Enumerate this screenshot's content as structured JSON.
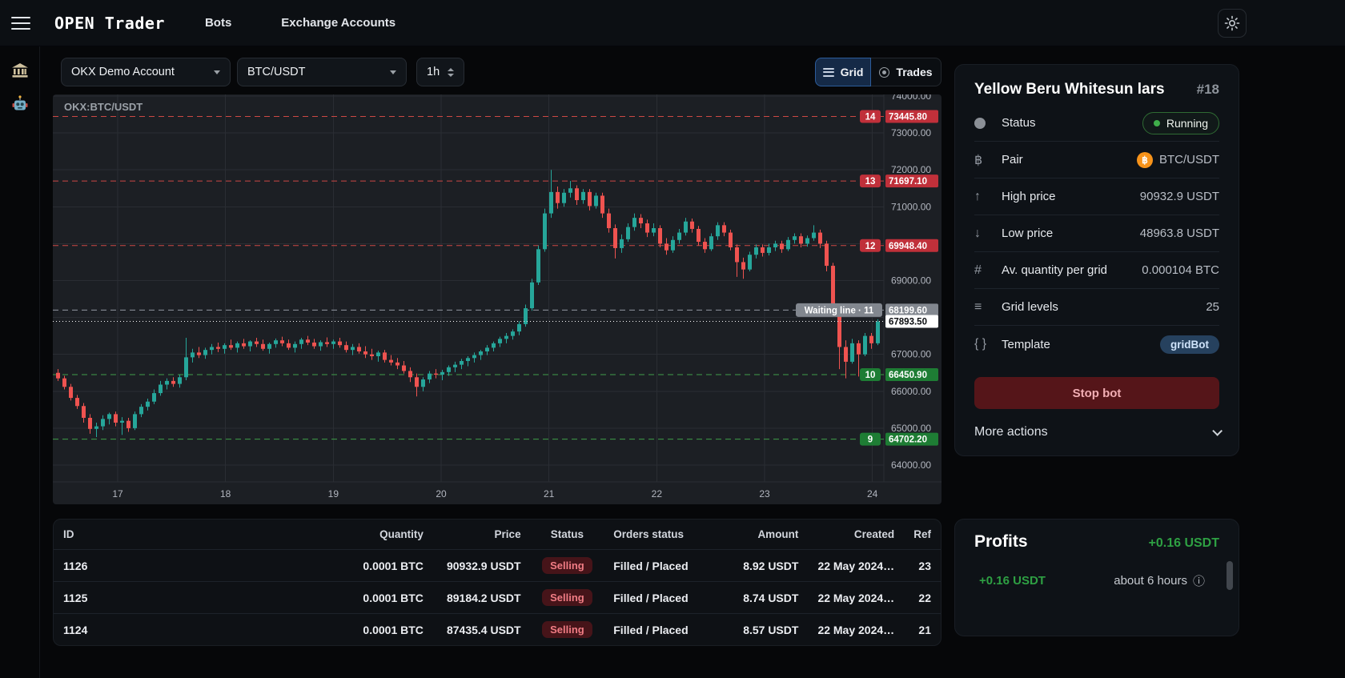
{
  "navbar": {
    "logo": "OPEN Trader",
    "items": [
      {
        "label": "Bots"
      },
      {
        "label": "Exchange Accounts"
      }
    ]
  },
  "controls": {
    "account_select": "OKX Demo Account",
    "pair_select": "BTC/USDT",
    "interval": "1h",
    "view_grid": "Grid",
    "view_trades": "Trades"
  },
  "icons": {
    "arrow_up": "↑",
    "arrow_down": "↓",
    "hash": "#",
    "list": "≡",
    "braces": "{ }",
    "bitcoin": "฿",
    "info": "ⓘ"
  },
  "chart_data": {
    "type": "candlestick",
    "symbol": "OKX:BTC/USDT",
    "interval": "1h",
    "ylim": [
      63800,
      74050
    ],
    "grid": true,
    "colors": {
      "up": "#26a69a",
      "down": "#ef5350",
      "sell_badge": "#c0303a",
      "sell_line": "#cc4844",
      "buy_badge": "#1e7d34",
      "buy_line": "#3f9e4a",
      "waiting_badge": "#82878f",
      "waiting_line": "#9096a0",
      "current": "#ffffff",
      "grid_line": "#2a2d33"
    },
    "y_ticks": [
      {
        "value": 74000,
        "label": "74000.00"
      },
      {
        "value": 73000,
        "label": "73000.00"
      },
      {
        "value": 72000,
        "label": "72000.00"
      },
      {
        "value": 71000,
        "label": "71000.00"
      },
      {
        "value": 70000,
        "label": ""
      },
      {
        "value": 69000,
        "label": "69000.00"
      },
      {
        "value": 68000,
        "label": ""
      },
      {
        "value": 67000,
        "label": "67000.00"
      },
      {
        "value": 66000,
        "label": "66000.00"
      },
      {
        "value": 65000,
        "label": "65000.00"
      },
      {
        "value": 64000,
        "label": "64000.00"
      }
    ],
    "x_ticks": [
      "17",
      "18",
      "19",
      "20",
      "21",
      "22",
      "23",
      "24"
    ],
    "grid_levels": [
      {
        "index": "14",
        "price": 73445.8,
        "label": "73445.80",
        "side": "sell"
      },
      {
        "index": "13",
        "price": 71697.1,
        "label": "71697.10",
        "side": "sell"
      },
      {
        "index": "12",
        "price": 69948.4,
        "label": "69948.40",
        "side": "sell"
      },
      {
        "index": "11",
        "price": 68199.6,
        "label": "68199.60",
        "side": "waiting",
        "line_label": "Waiting line · 11"
      },
      {
        "index": "10",
        "price": 66450.9,
        "label": "66450.90",
        "side": "buy"
      },
      {
        "index": "9",
        "price": 64702.2,
        "label": "64702.20",
        "side": "buy"
      }
    ],
    "current_price": {
      "value": 67893.5,
      "label": "67893.50"
    },
    "candles": [
      [
        66500,
        66600,
        66280,
        66350
      ],
      [
        66350,
        66420,
        66050,
        66120
      ],
      [
        66120,
        66200,
        65750,
        65820
      ],
      [
        65820,
        65900,
        65520,
        65600
      ],
      [
        65600,
        65680,
        65150,
        65280
      ],
      [
        65280,
        65380,
        64850,
        64980
      ],
      [
        64980,
        65150,
        64760,
        65050
      ],
      [
        65050,
        65350,
        64950,
        65250
      ],
      [
        65250,
        65420,
        65100,
        65380
      ],
      [
        65380,
        65450,
        65050,
        65150
      ],
      [
        65150,
        65300,
        64820,
        65200
      ],
      [
        65200,
        65280,
        64900,
        65000
      ],
      [
        65000,
        65450,
        64950,
        65380
      ],
      [
        65380,
        65650,
        65300,
        65580
      ],
      [
        65580,
        65800,
        65480,
        65720
      ],
      [
        65720,
        66050,
        65650,
        65950
      ],
      [
        65950,
        66280,
        65880,
        66180
      ],
      [
        66180,
        66350,
        66050,
        66280
      ],
      [
        66280,
        66380,
        66120,
        66200
      ],
      [
        66200,
        66450,
        66100,
        66380
      ],
      [
        66380,
        67450,
        66300,
        66920
      ],
      [
        66920,
        67150,
        66780,
        67050
      ],
      [
        67050,
        67200,
        66900,
        66980
      ],
      [
        66980,
        67180,
        66880,
        67120
      ],
      [
        67120,
        67280,
        67000,
        67200
      ],
      [
        67200,
        67320,
        67060,
        67150
      ],
      [
        67150,
        67300,
        67020,
        67250
      ],
      [
        67250,
        67400,
        67120,
        67180
      ],
      [
        67180,
        67350,
        67050,
        67300
      ],
      [
        67300,
        67420,
        67150,
        67220
      ],
      [
        67220,
        67380,
        67080,
        67350
      ],
      [
        67350,
        67450,
        67200,
        67280
      ],
      [
        67280,
        67400,
        67100,
        67150
      ],
      [
        67150,
        67320,
        67020,
        67280
      ],
      [
        67280,
        67430,
        67180,
        67380
      ],
      [
        67380,
        67480,
        67220,
        67300
      ],
      [
        67300,
        67400,
        67120,
        67180
      ],
      [
        67180,
        67350,
        67050,
        67280
      ],
      [
        67280,
        67450,
        67150,
        67400
      ],
      [
        67400,
        67500,
        67250,
        67320
      ],
      [
        67320,
        67420,
        67150,
        67220
      ],
      [
        67220,
        67380,
        67100,
        67330
      ],
      [
        67330,
        67460,
        67200,
        67280
      ],
      [
        67280,
        67400,
        67150,
        67350
      ],
      [
        67350,
        67450,
        67180,
        67250
      ],
      [
        67250,
        67350,
        67050,
        67120
      ],
      [
        67120,
        67280,
        66980,
        67200
      ],
      [
        67200,
        67300,
        67020,
        67080
      ],
      [
        67080,
        67220,
        66900,
        67000
      ],
      [
        67000,
        67150,
        66850,
        66950
      ],
      [
        66950,
        67100,
        66800,
        67050
      ],
      [
        67050,
        67120,
        66780,
        66850
      ],
      [
        66850,
        66980,
        66700,
        66780
      ],
      [
        66780,
        66900,
        66600,
        66700
      ],
      [
        66700,
        66820,
        66480,
        66550
      ],
      [
        66550,
        66650,
        66250,
        66380
      ],
      [
        66380,
        66480,
        65860,
        66120
      ],
      [
        66120,
        66380,
        66000,
        66320
      ],
      [
        66320,
        66550,
        66220,
        66480
      ],
      [
        66480,
        66600,
        66350,
        66450
      ],
      [
        66450,
        66580,
        66300,
        66520
      ],
      [
        66520,
        66700,
        66420,
        66650
      ],
      [
        66650,
        66800,
        66520,
        66720
      ],
      [
        66720,
        66880,
        66600,
        66820
      ],
      [
        66820,
        66950,
        66680,
        66900
      ],
      [
        66900,
        67050,
        66780,
        66980
      ],
      [
        66980,
        67120,
        66850,
        67080
      ],
      [
        67080,
        67250,
        66980,
        67180
      ],
      [
        67180,
        67350,
        67080,
        67300
      ],
      [
        67300,
        67480,
        67200,
        67420
      ],
      [
        67420,
        67580,
        67300,
        67500
      ],
      [
        67500,
        67680,
        67400,
        67620
      ],
      [
        67620,
        67900,
        67520,
        67820
      ],
      [
        67820,
        68350,
        67750,
        68250
      ],
      [
        68250,
        69050,
        68180,
        68950
      ],
      [
        68950,
        69950,
        68880,
        69850
      ],
      [
        69850,
        70950,
        69780,
        70820
      ],
      [
        70820,
        72000,
        70700,
        71400
      ],
      [
        71400,
        71550,
        70950,
        71100
      ],
      [
        71100,
        71480,
        71000,
        71380
      ],
      [
        71380,
        71700,
        71250,
        71500
      ],
      [
        71500,
        71580,
        71050,
        71180
      ],
      [
        71180,
        71480,
        71080,
        71400
      ],
      [
        71400,
        71480,
        70900,
        71020
      ],
      [
        71020,
        71380,
        70950,
        71300
      ],
      [
        71300,
        71380,
        70700,
        70820
      ],
      [
        70820,
        70950,
        70300,
        70420
      ],
      [
        70420,
        70520,
        69600,
        69880
      ],
      [
        69880,
        70250,
        69750,
        70120
      ],
      [
        70120,
        70550,
        70050,
        70450
      ],
      [
        70450,
        70820,
        70350,
        70700
      ],
      [
        70700,
        70800,
        70420,
        70550
      ],
      [
        70550,
        70650,
        70180,
        70300
      ],
      [
        70300,
        70550,
        70200,
        70420
      ],
      [
        70420,
        70500,
        69900,
        70000
      ],
      [
        70000,
        70150,
        69700,
        69820
      ],
      [
        69820,
        70200,
        69750,
        70100
      ],
      [
        70100,
        70400,
        70000,
        70300
      ],
      [
        70300,
        70700,
        70220,
        70600
      ],
      [
        70600,
        70680,
        70300,
        70400
      ],
      [
        70400,
        70480,
        69950,
        70050
      ],
      [
        70050,
        70150,
        69750,
        69850
      ],
      [
        69850,
        70280,
        69800,
        70200
      ],
      [
        70200,
        70580,
        70100,
        70500
      ],
      [
        70500,
        70580,
        70200,
        70300
      ],
      [
        70300,
        70380,
        69820,
        69900
      ],
      [
        69900,
        69980,
        69100,
        69500
      ],
      [
        69500,
        69620,
        69050,
        69300
      ],
      [
        69300,
        69780,
        69250,
        69700
      ],
      [
        69700,
        69980,
        69600,
        69900
      ],
      [
        69900,
        69980,
        69650,
        69750
      ],
      [
        69750,
        70000,
        69680,
        69900
      ],
      [
        69900,
        70080,
        69800,
        70000
      ],
      [
        70000,
        70080,
        69750,
        69850
      ],
      [
        69850,
        70180,
        69800,
        70100
      ],
      [
        70100,
        70280,
        70000,
        70200
      ],
      [
        70200,
        70280,
        69900,
        70000
      ],
      [
        70000,
        70220,
        69920,
        70150
      ],
      [
        70150,
        70500,
        70080,
        70300
      ],
      [
        70300,
        70380,
        69880,
        70000
      ],
      [
        70000,
        70080,
        69250,
        69400
      ],
      [
        69400,
        69480,
        68150,
        68300
      ],
      [
        68300,
        68380,
        66600,
        67200
      ],
      [
        67200,
        67380,
        66350,
        66800
      ],
      [
        66800,
        67420,
        66750,
        67300
      ],
      [
        67300,
        67380,
        66400,
        67000
      ],
      [
        67000,
        67580,
        66950,
        67500
      ],
      [
        67500,
        67580,
        67150,
        67300
      ],
      [
        67300,
        67950,
        67250,
        67890
      ]
    ]
  },
  "bot_panel": {
    "title": "Yellow Beru Whitesun lars",
    "bot_id": "#18",
    "rows": [
      {
        "label": "Status",
        "value": "Running"
      },
      {
        "label": "Pair",
        "value": "BTC/USDT"
      },
      {
        "label": "High price",
        "value": "90932.9 USDT"
      },
      {
        "label": "Low price",
        "value": "48963.8 USDT"
      },
      {
        "label": "Av. quantity per grid",
        "value": "0.000104 BTC"
      },
      {
        "label": "Grid levels",
        "value": "25"
      },
      {
        "label": "Template",
        "value": "gridBot"
      }
    ],
    "stop_button": "Stop bot",
    "more_actions": "More actions"
  },
  "orders": {
    "columns": [
      "ID",
      "Quantity",
      "Price",
      "Status",
      "Orders status",
      "Amount",
      "Created",
      "Ref"
    ],
    "rows": [
      {
        "id": "1126",
        "quantity": "0.0001 BTC",
        "price": "90932.9 USDT",
        "status": "Selling",
        "orders_status": "Filled / Placed",
        "amount": "8.92 USDT",
        "created": "22 May 2024…",
        "ref": "23"
      },
      {
        "id": "1125",
        "quantity": "0.0001 BTC",
        "price": "89184.2 USDT",
        "status": "Selling",
        "orders_status": "Filled / Placed",
        "amount": "8.74 USDT",
        "created": "22 May 2024…",
        "ref": "22"
      },
      {
        "id": "1124",
        "quantity": "0.0001 BTC",
        "price": "87435.4 USDT",
        "status": "Selling",
        "orders_status": "Filled / Placed",
        "amount": "8.57 USDT",
        "created": "22 May 2024…",
        "ref": "21"
      }
    ]
  },
  "profits": {
    "title": "Profits",
    "total": "+0.16 USDT",
    "entries": [
      {
        "amount": "+0.16 USDT",
        "time": "about 6 hours"
      }
    ]
  }
}
